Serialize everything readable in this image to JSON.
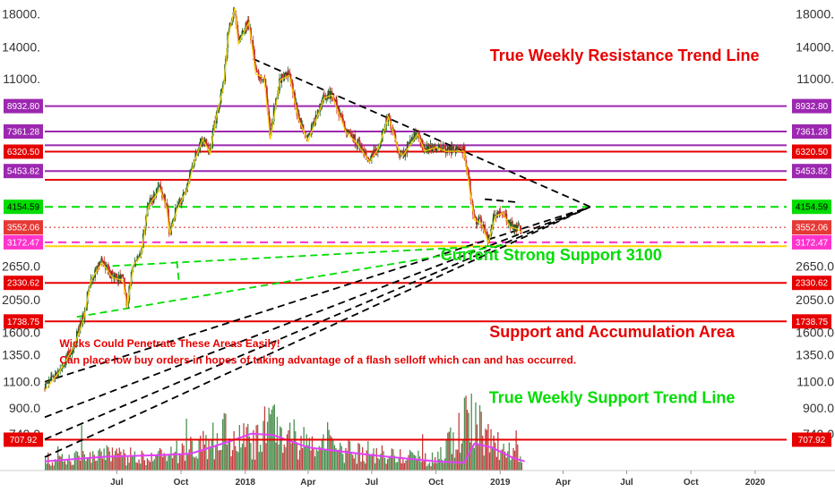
{
  "chart_data": {
    "type": "candlestick",
    "title": "",
    "y_scale": "log",
    "ylim": [
      560,
      20000
    ],
    "xlim": [
      "2017-03-20",
      "2020-02-15"
    ],
    "y_ticks": [
      {
        "value": 18000,
        "label": "18000."
      },
      {
        "value": 14000,
        "label": "14000."
      },
      {
        "value": 11000,
        "label": "11000."
      },
      {
        "value": 2650,
        "label": "2650.0"
      },
      {
        "value": 2050,
        "label": "2050.0"
      },
      {
        "value": 1600,
        "label": "1600.0"
      },
      {
        "value": 1350,
        "label": "1350.0"
      },
      {
        "value": 1100,
        "label": "1100.0"
      },
      {
        "value": 900,
        "label": "900.0"
      },
      {
        "value": 740,
        "label": "740.0"
      }
    ],
    "x_ticks": [
      {
        "date": "2017-07-01",
        "label": "Jul"
      },
      {
        "date": "2017-10-01",
        "label": "Oct"
      },
      {
        "date": "2018-01-01",
        "label": "2018"
      },
      {
        "date": "2018-04-01",
        "label": "Apr"
      },
      {
        "date": "2018-07-01",
        "label": "Jul"
      },
      {
        "date": "2018-10-01",
        "label": "Oct"
      },
      {
        "date": "2019-01-01",
        "label": "2019"
      },
      {
        "date": "2019-04-01",
        "label": "Apr"
      },
      {
        "date": "2019-07-01",
        "label": "Jul"
      },
      {
        "date": "2019-10-01",
        "label": "Oct"
      },
      {
        "date": "2020-01-01",
        "label": "2020"
      }
    ],
    "price_series": [
      {
        "x": "2017-03-20",
        "close": 1040
      },
      {
        "x": "2017-04-10",
        "close": 1200
      },
      {
        "x": "2017-05-01",
        "close": 1450
      },
      {
        "x": "2017-05-15",
        "close": 1800
      },
      {
        "x": "2017-05-25",
        "close": 2400
      },
      {
        "x": "2017-06-10",
        "close": 2750
      },
      {
        "x": "2017-06-25",
        "close": 2450
      },
      {
        "x": "2017-07-10",
        "close": 2400
      },
      {
        "x": "2017-07-16",
        "close": 1950
      },
      {
        "x": "2017-07-25",
        "close": 2700
      },
      {
        "x": "2017-08-05",
        "close": 2900
      },
      {
        "x": "2017-08-15",
        "close": 4200
      },
      {
        "x": "2017-09-01",
        "close": 4800
      },
      {
        "x": "2017-09-10",
        "close": 4200
      },
      {
        "x": "2017-09-15",
        "close": 3400
      },
      {
        "x": "2017-09-25",
        "close": 4100
      },
      {
        "x": "2017-10-10",
        "close": 4800
      },
      {
        "x": "2017-10-20",
        "close": 5900
      },
      {
        "x": "2017-11-01",
        "close": 7000
      },
      {
        "x": "2017-11-12",
        "close": 6300
      },
      {
        "x": "2017-11-20",
        "close": 8200
      },
      {
        "x": "2017-12-01",
        "close": 10500
      },
      {
        "x": "2017-12-08",
        "close": 15500
      },
      {
        "x": "2017-12-17",
        "close": 19000
      },
      {
        "x": "2017-12-22",
        "close": 14500
      },
      {
        "x": "2018-01-06",
        "close": 17000
      },
      {
        "x": "2018-01-16",
        "close": 11500
      },
      {
        "x": "2018-01-28",
        "close": 11200
      },
      {
        "x": "2018-02-06",
        "close": 7000
      },
      {
        "x": "2018-02-20",
        "close": 11000
      },
      {
        "x": "2018-03-05",
        "close": 11400
      },
      {
        "x": "2018-03-18",
        "close": 8200
      },
      {
        "x": "2018-04-01",
        "close": 6900
      },
      {
        "x": "2018-04-24",
        "close": 9600
      },
      {
        "x": "2018-05-05",
        "close": 9800
      },
      {
        "x": "2018-05-25",
        "close": 7400
      },
      {
        "x": "2018-06-10",
        "close": 6800
      },
      {
        "x": "2018-06-28",
        "close": 5900
      },
      {
        "x": "2018-07-10",
        "close": 6500
      },
      {
        "x": "2018-07-25",
        "close": 8300
      },
      {
        "x": "2018-08-10",
        "close": 6300
      },
      {
        "x": "2018-08-15",
        "close": 6200
      },
      {
        "x": "2018-09-05",
        "close": 7300
      },
      {
        "x": "2018-09-15",
        "close": 6400
      },
      {
        "x": "2018-10-01",
        "close": 6600
      },
      {
        "x": "2018-10-15",
        "close": 6400
      },
      {
        "x": "2018-11-10",
        "close": 6400
      },
      {
        "x": "2018-11-20",
        "close": 4500
      },
      {
        "x": "2018-11-25",
        "close": 3800
      },
      {
        "x": "2018-12-05",
        "close": 3700
      },
      {
        "x": "2018-12-15",
        "close": 3200
      },
      {
        "x": "2018-12-25",
        "close": 3900
      },
      {
        "x": "2019-01-05",
        "close": 4000
      },
      {
        "x": "2019-01-15",
        "close": 3600
      },
      {
        "x": "2019-01-25",
        "close": 3550
      },
      {
        "x": "2019-02-01",
        "close": 3450
      }
    ],
    "volume_series": [
      {
        "x": "2017-03-20",
        "value": 0.15
      },
      {
        "x": "2017-06-01",
        "value": 0.3
      },
      {
        "x": "2017-08-01",
        "value": 0.25
      },
      {
        "x": "2017-10-01",
        "value": 0.35
      },
      {
        "x": "2017-12-10",
        "value": 0.7
      },
      {
        "x": "2018-01-15",
        "value": 0.55
      },
      {
        "x": "2018-02-06",
        "value": 0.85
      },
      {
        "x": "2018-04-01",
        "value": 0.45
      },
      {
        "x": "2018-07-01",
        "value": 0.3
      },
      {
        "x": "2018-10-01",
        "value": 0.2
      },
      {
        "x": "2018-11-20",
        "value": 1.0
      },
      {
        "x": "2018-12-15",
        "value": 0.6
      },
      {
        "x": "2019-01-20",
        "value": 0.25
      },
      {
        "x": "2019-02-01",
        "value": 0.15
      }
    ],
    "volume_ma": [
      {
        "x": "2017-03-20",
        "value": 0.12
      },
      {
        "x": "2017-06-15",
        "value": 0.18
      },
      {
        "x": "2017-09-01",
        "value": 0.2
      },
      {
        "x": "2017-10-15",
        "value": 0.22
      },
      {
        "x": "2017-12-10",
        "value": 0.38
      },
      {
        "x": "2018-01-10",
        "value": 0.48
      },
      {
        "x": "2018-02-10",
        "value": 0.46
      },
      {
        "x": "2018-04-01",
        "value": 0.3
      },
      {
        "x": "2018-07-01",
        "value": 0.2
      },
      {
        "x": "2018-10-01",
        "value": 0.12
      },
      {
        "x": "2018-11-10",
        "value": 0.1
      },
      {
        "x": "2018-11-25",
        "value": 0.35
      },
      {
        "x": "2018-12-20",
        "value": 0.3
      },
      {
        "x": "2019-01-20",
        "value": 0.16
      },
      {
        "x": "2019-02-05",
        "value": 0.12
      }
    ],
    "horizontal_levels": [
      {
        "value": 8932.8,
        "label": "8932.80",
        "color": "#9c27b0",
        "style": "solid"
      },
      {
        "value": 7361.28,
        "label": "7361.28",
        "color": "#9c27b0",
        "style": "solid"
      },
      {
        "value": 6630,
        "label": "",
        "color": "#9c27b0",
        "style": "solid"
      },
      {
        "value": 6320.5,
        "label": "6320.50",
        "color": "#e60000",
        "style": "solid"
      },
      {
        "value": 5453.82,
        "label": "5453.82",
        "color": "#9c27b0",
        "style": "solid"
      },
      {
        "value": 5100,
        "label": "",
        "color": "#e60000",
        "style": "solid"
      },
      {
        "value": 4154.59,
        "label": "4154.59",
        "color": "#00dd00",
        "style": "dashed"
      },
      {
        "value": 3552.06,
        "label": "3552.06",
        "color": "#e53935",
        "style": "dotted"
      },
      {
        "value": 3172.47,
        "label": "3172.47",
        "color": "#ff33cc",
        "style": "dashed"
      },
      {
        "value": 3080,
        "label": "",
        "color": "#ffd600",
        "style": "solid"
      },
      {
        "value": 2330.62,
        "label": "2330.62",
        "color": "#e60000",
        "style": "solid"
      },
      {
        "value": 1738.75,
        "label": "1738.75",
        "color": "#e60000",
        "style": "solid"
      },
      {
        "value": 707.92,
        "label": "707.92",
        "color": "#e60000",
        "style": "solid"
      }
    ],
    "trend_lines": [
      {
        "color": "#000000",
        "points": [
          [
            "2018-01-12",
            12800
          ],
          [
            "2019-05-10",
            4154.59
          ]
        ]
      },
      {
        "color": "#000000",
        "points": [
          [
            "2018-12-10",
            4400
          ],
          [
            "2019-01-25",
            4300
          ]
        ]
      },
      {
        "color": "#000000",
        "points": [
          [
            "2017-03-20",
            1100
          ],
          [
            "2019-05-10",
            4154.59
          ]
        ]
      },
      {
        "color": "#000000",
        "points": [
          [
            "2017-03-20",
            840
          ],
          [
            "2019-05-10",
            4154.59
          ]
        ]
      },
      {
        "color": "#000000",
        "points": [
          [
            "2017-03-20",
            710
          ],
          [
            "2019-05-10",
            4154.59
          ]
        ]
      },
      {
        "color": "#000000",
        "points": [
          [
            "2017-03-20",
            620
          ],
          [
            "2019-05-10",
            4154.59
          ]
        ]
      },
      {
        "color": "#00dd00",
        "points": [
          [
            "2017-06-25",
            2650
          ],
          [
            "2019-01-05",
            3100
          ]
        ]
      },
      {
        "color": "#00dd00",
        "points": [
          [
            "2017-05-05",
            1800
          ],
          [
            "2019-01-05",
            3100
          ]
        ]
      },
      {
        "color": "#00dd00",
        "points": [
          [
            "2017-09-25",
            2750
          ],
          [
            "2017-09-28",
            2350
          ]
        ]
      }
    ],
    "annotations": [
      {
        "text": "True Weekly Resistance Trend Line",
        "color": "#e60000",
        "size": 18,
        "x": "2019-06-28",
        "y": 12600,
        "anchor": "middle"
      },
      {
        "text": "Current Strong Support 3100",
        "color": "#00dd00",
        "size": 18,
        "x": "2019-03-15",
        "y": 2770,
        "anchor": "middle"
      },
      {
        "text": "Support and Accumulation Area",
        "color": "#e60000",
        "size": 18,
        "x": "2019-06-10",
        "y": 1540,
        "anchor": "middle"
      },
      {
        "text": "Wicks Could Penetrate These Areas Easily!",
        "color": "#e60000",
        "size": 12,
        "x": "2017-04-10",
        "y": 1430,
        "anchor": "start"
      },
      {
        "text": "Can place low buy orders in hopes of taking advantage of a flash selloff which can and has occurred.",
        "color": "#e60000",
        "size": 12,
        "x": "2017-04-10",
        "y": 1260,
        "anchor": "start"
      },
      {
        "text": "True Weekly Support Trend Line",
        "color": "#00dd00",
        "size": 18,
        "x": "2019-06-10",
        "y": 935,
        "anchor": "middle"
      }
    ]
  }
}
